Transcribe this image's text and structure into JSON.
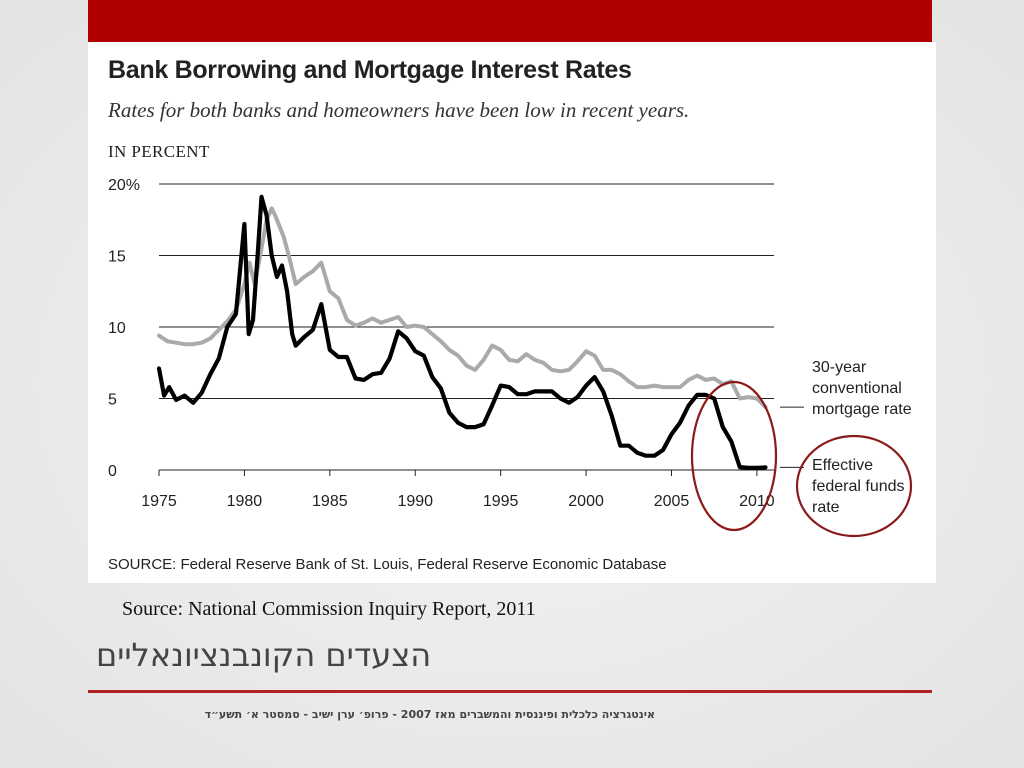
{
  "slide": {
    "caption": "Source: National Commission Inquiry Report, 2011",
    "title": "הצעדים הקונבנציונאליים",
    "footer": "אינטגרציה כלכלית ופיננסית והמשברים מאז 2007 - פרופ׳ ערן ישיב - סמסטר א׳ תשע״ד",
    "colors": {
      "top_bar": "#b00000",
      "rule": "#b22222",
      "highlight_circle": "#8b1a1a"
    }
  },
  "chart_data": {
    "type": "line",
    "title": "Bank Borrowing and Mortgage Interest Rates",
    "subtitle": "Rates for both banks and homeowners have been low in recent years.",
    "ylabel": "IN PERCENT",
    "source": "SOURCE: Federal Reserve Bank of St. Louis, Federal Reserve Economic Database",
    "xlim": [
      1975,
      2011
    ],
    "ylim": [
      0,
      20
    ],
    "xticks": [
      1975,
      1980,
      1985,
      1990,
      1995,
      2000,
      2005,
      2010
    ],
    "xtick_labels": [
      "1975",
      "1980",
      "1985",
      "1990",
      "1995",
      "2000",
      "2005",
      "2010"
    ],
    "yticks": [
      0,
      5,
      10,
      15,
      20
    ],
    "ytick_labels": [
      "0",
      "5",
      "10",
      "15",
      "20%"
    ],
    "grid": true,
    "legend": "direct labels, right",
    "series": [
      {
        "name": "30-year conventional mortgage rate",
        "color": "#aaaaaa",
        "x": [
          1975,
          1975.5,
          1976,
          1976.5,
          1977,
          1977.5,
          1978,
          1978.5,
          1979,
          1979.5,
          1980,
          1980.3,
          1980.6,
          1981,
          1981.3,
          1981.6,
          1981.8,
          1982,
          1982.3,
          1982.6,
          1983,
          1983.5,
          1984,
          1984.5,
          1985,
          1985.5,
          1986,
          1986.5,
          1987,
          1987.5,
          1988,
          1988.5,
          1989,
          1989.5,
          1990,
          1990.5,
          1991,
          1991.5,
          1992,
          1992.5,
          1993,
          1993.5,
          1994,
          1994.5,
          1995,
          1995.5,
          1996,
          1996.5,
          1997,
          1997.5,
          1998,
          1998.5,
          1999,
          1999.5,
          2000,
          2000.5,
          2001,
          2001.5,
          2002,
          2002.5,
          2003,
          2003.5,
          2004,
          2004.5,
          2005,
          2005.5,
          2006,
          2006.5,
          2007,
          2007.5,
          2008,
          2008.5,
          2009,
          2009.5,
          2010,
          2010.5
        ],
        "values": [
          9.4,
          9.0,
          8.9,
          8.8,
          8.8,
          8.9,
          9.2,
          9.8,
          10.4,
          11.2,
          13.0,
          14.5,
          13.0,
          15.5,
          17.5,
          18.3,
          17.8,
          17.2,
          16.3,
          15.0,
          13.0,
          13.5,
          13.9,
          14.5,
          12.5,
          12.0,
          10.5,
          10.1,
          10.3,
          10.6,
          10.3,
          10.5,
          10.7,
          10.0,
          10.1,
          10.0,
          9.5,
          9.0,
          8.4,
          8.0,
          7.3,
          7.0,
          7.7,
          8.7,
          8.4,
          7.7,
          7.6,
          8.1,
          7.7,
          7.5,
          7.0,
          6.9,
          7.0,
          7.6,
          8.3,
          8.0,
          7.0,
          7.0,
          6.7,
          6.2,
          5.8,
          5.8,
          5.9,
          5.8,
          5.8,
          5.8,
          6.3,
          6.6,
          6.3,
          6.4,
          6.0,
          6.2,
          5.0,
          5.1,
          5.0,
          4.4
        ]
      },
      {
        "name": "Effective federal funds rate",
        "color": "#000000",
        "x": [
          1975,
          1975.3,
          1975.6,
          1976,
          1976.5,
          1977,
          1977.5,
          1978,
          1978.5,
          1979,
          1979.5,
          1980,
          1980.25,
          1980.5,
          1980.8,
          1981,
          1981.3,
          1981.6,
          1981.9,
          1982.2,
          1982.5,
          1982.8,
          1983,
          1983.5,
          1984,
          1984.5,
          1985,
          1985.5,
          1986,
          1986.5,
          1987,
          1987.5,
          1988,
          1988.5,
          1989,
          1989.5,
          1990,
          1990.5,
          1991,
          1991.5,
          1992,
          1992.5,
          1993,
          1993.5,
          1994,
          1994.5,
          1995,
          1995.5,
          1996,
          1996.5,
          1997,
          1997.5,
          1998,
          1998.5,
          1999,
          1999.5,
          2000,
          2000.5,
          2001,
          2001.5,
          2002,
          2002.5,
          2003,
          2003.5,
          2004,
          2004.5,
          2005,
          2005.5,
          2006,
          2006.5,
          2007,
          2007.5,
          2008,
          2008.5,
          2009,
          2009.5,
          2010,
          2010.5
        ],
        "values": [
          7.1,
          5.2,
          5.8,
          4.9,
          5.2,
          4.7,
          5.4,
          6.7,
          7.8,
          10.0,
          10.9,
          17.2,
          9.5,
          10.5,
          15.5,
          19.1,
          17.8,
          15.0,
          13.5,
          14.3,
          12.5,
          9.5,
          8.7,
          9.3,
          9.8,
          11.6,
          8.4,
          7.9,
          7.9,
          6.4,
          6.3,
          6.7,
          6.8,
          7.8,
          9.7,
          9.2,
          8.3,
          8.0,
          6.5,
          5.7,
          4.0,
          3.3,
          3.0,
          3.0,
          3.2,
          4.5,
          5.9,
          5.8,
          5.3,
          5.3,
          5.5,
          5.5,
          5.5,
          5.0,
          4.7,
          5.1,
          5.9,
          6.5,
          5.5,
          3.8,
          1.7,
          1.7,
          1.2,
          1.0,
          1.0,
          1.4,
          2.5,
          3.3,
          4.5,
          5.25,
          5.25,
          5.0,
          3.0,
          2.0,
          0.2,
          0.15,
          0.15,
          0.18
        ]
      }
    ],
    "series_labels": {
      "mortgage": [
        "30-year",
        "conventional",
        "mortgage rate"
      ],
      "fed_funds": [
        "Effective",
        "federal funds",
        "rate"
      ]
    }
  }
}
